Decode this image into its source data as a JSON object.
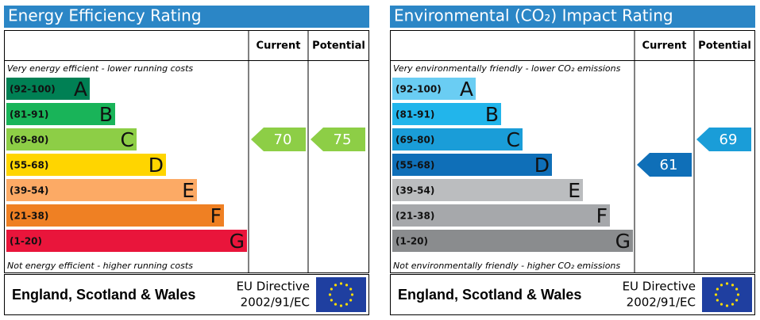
{
  "panels": [
    {
      "title": "Energy Efficiency Rating",
      "columns": [
        "Current",
        "Potential"
      ],
      "top_note": "Very energy efficient - lower running costs",
      "bottom_note": "Not energy efficient - higher running costs",
      "bands": [
        {
          "range": "(92-100)",
          "letter": "A",
          "color": "#008054"
        },
        {
          "range": "(81-91)",
          "letter": "B",
          "color": "#19b459"
        },
        {
          "range": "(69-80)",
          "letter": "C",
          "color": "#8dce46"
        },
        {
          "range": "(55-68)",
          "letter": "D",
          "color": "#ffd500"
        },
        {
          "range": "(39-54)",
          "letter": "E",
          "color": "#fcaa65"
        },
        {
          "range": "(21-38)",
          "letter": "F",
          "color": "#ef8023"
        },
        {
          "range": "(1-20)",
          "letter": "G",
          "color": "#e9153b"
        }
      ],
      "current": 70,
      "potential": 75,
      "footer": {
        "region": "England, Scotland & Wales",
        "directive": "EU Directive",
        "directive_no": "2002/91/EC"
      }
    },
    {
      "title": "Environmental (CO₂) Impact Rating",
      "columns": [
        "Current",
        "Potential"
      ],
      "top_note": "Very environmentally friendly - lower CO₂ emissions",
      "bottom_note": "Not environmentally friendly - higher CO₂ emissions",
      "bands": [
        {
          "range": "(92-100)",
          "letter": "A",
          "color": "#6acdf3"
        },
        {
          "range": "(81-91)",
          "letter": "B",
          "color": "#22b5eb"
        },
        {
          "range": "(69-80)",
          "letter": "C",
          "color": "#1a9dd8"
        },
        {
          "range": "(55-68)",
          "letter": "D",
          "color": "#0f6fb8"
        },
        {
          "range": "(39-54)",
          "letter": "E",
          "color": "#bbbdbf"
        },
        {
          "range": "(21-38)",
          "letter": "F",
          "color": "#a6a8ab"
        },
        {
          "range": "(1-20)",
          "letter": "G",
          "color": "#8a8c8e"
        }
      ],
      "current": 61,
      "potential": 69,
      "footer": {
        "region": "England, Scotland & Wales",
        "directive": "EU Directive",
        "directive_no": "2002/91/EC"
      }
    }
  ]
}
